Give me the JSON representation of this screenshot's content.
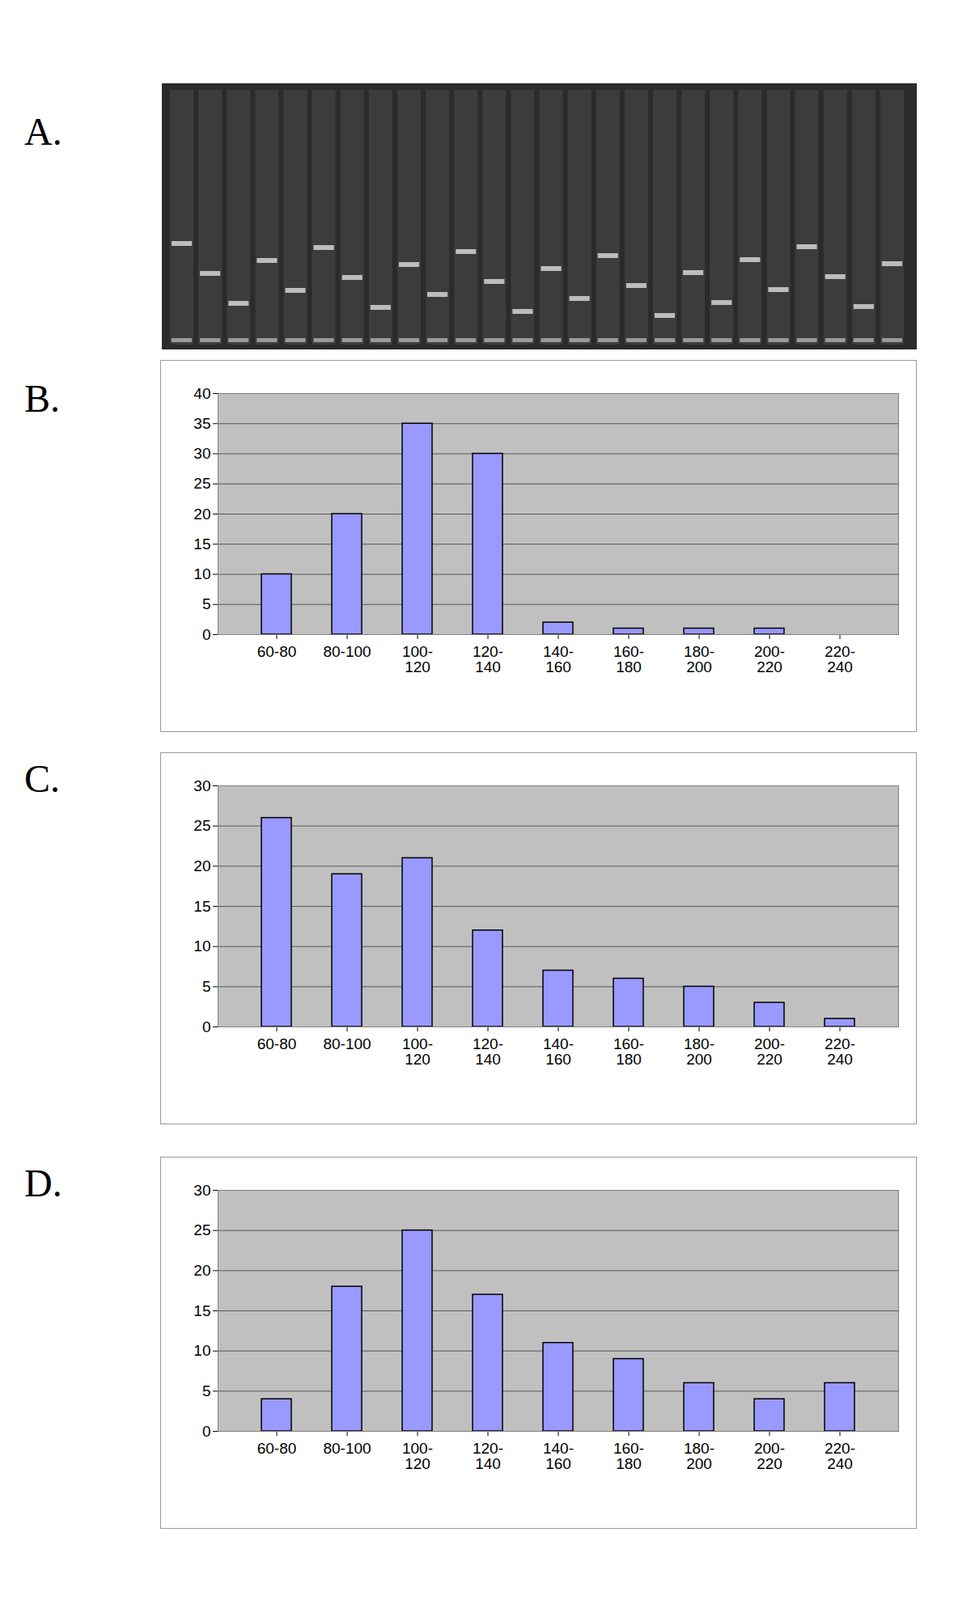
{
  "gel_image": {
    "panel_label": "A."
  },
  "chart_data": [
    {
      "panel_label": "B.",
      "type": "bar",
      "categories": [
        "60-80",
        "80-100",
        "100-120",
        "120-140",
        "140-160",
        "160-180",
        "180-200",
        "200-220",
        "220-240"
      ],
      "values": [
        10,
        20,
        35,
        30,
        2,
        1,
        1,
        1,
        0
      ],
      "color": "#9999ff",
      "ylim": [
        0,
        40
      ],
      "yticks": [
        0,
        5,
        10,
        15,
        20,
        25,
        30,
        35,
        40
      ],
      "grid": true
    },
    {
      "panel_label": "C.",
      "type": "bar",
      "categories": [
        "60-80",
        "80-100",
        "100-120",
        "120-140",
        "140-160",
        "160-180",
        "180-200",
        "200-220",
        "220-240"
      ],
      "values": [
        26,
        19,
        21,
        12,
        7,
        6,
        5,
        3,
        1
      ],
      "color": "#9999ff",
      "ylim": [
        0,
        30
      ],
      "yticks": [
        0,
        5,
        10,
        15,
        20,
        25,
        30
      ],
      "grid": true
    },
    {
      "panel_label": "D.",
      "type": "bar",
      "categories": [
        "60-80",
        "80-100",
        "100-120",
        "120-140",
        "140-160",
        "160-180",
        "180-200",
        "200-220",
        "220-240"
      ],
      "values": [
        4,
        18,
        25,
        17,
        11,
        9,
        6,
        4,
        6
      ],
      "color": "#9999ff",
      "ylim": [
        0,
        30
      ],
      "yticks": [
        0,
        5,
        10,
        15,
        20,
        25,
        30
      ],
      "grid": true
    }
  ]
}
